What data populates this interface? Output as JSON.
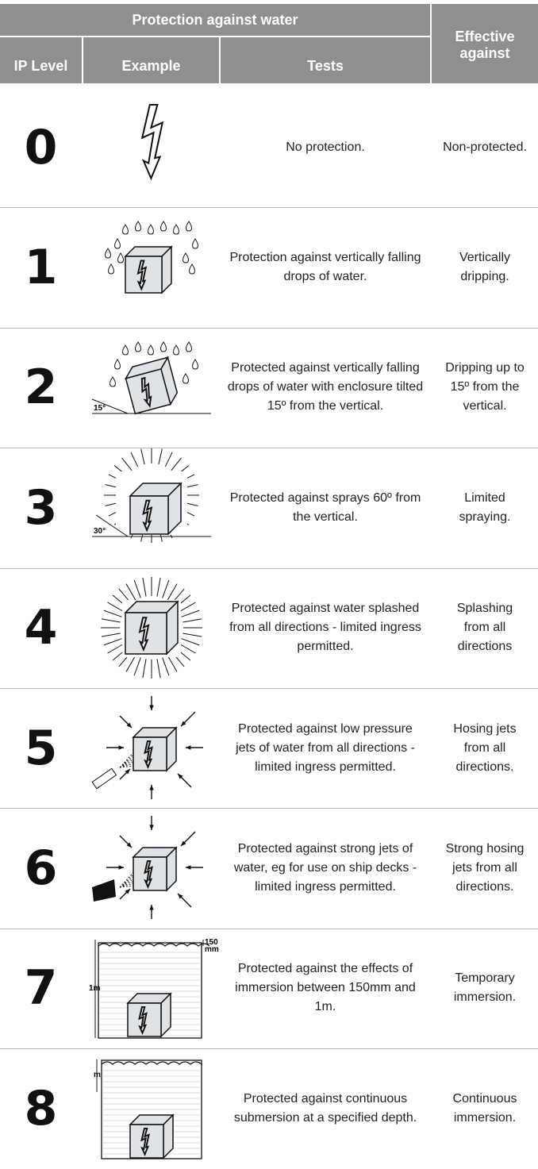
{
  "table": {
    "header": {
      "group": "Protection against water",
      "columns": [
        "IP Level",
        "Example",
        "Tests",
        "Effective against"
      ]
    },
    "rows": [
      {
        "level": "0",
        "test": "No protection.",
        "effective": "Non-protected."
      },
      {
        "level": "1",
        "test": "Protection against vertically falling drops of water.",
        "effective": "Vertically dripping."
      },
      {
        "level": "2",
        "test": "Protected against vertically falling drops of water with enclosure tilted 15º from the vertical.",
        "effective": "Dripping up to 15º from the vertical.",
        "icon_text": [
          "15°"
        ]
      },
      {
        "level": "3",
        "test": "Protected against sprays 60º from the vertical.",
        "effective": "Limited spraying.",
        "icon_text": [
          "30°"
        ]
      },
      {
        "level": "4",
        "test": "Protected against water splashed from all directions - limited ingress permitted.",
        "effective": "Splashing from all directions"
      },
      {
        "level": "5",
        "test": "Protected against low pressure jets of water from all directions - limited ingress permitted.",
        "effective": "Hosing jets from all directions."
      },
      {
        "level": "6",
        "test": "Protected against strong jets of water, eg for use on ship decks - limited ingress permitted.",
        "effective": "Strong hosing jets from all directions."
      },
      {
        "level": "7",
        "test": "Protected against the effects of immersion between 150mm and 1m.",
        "effective": "Temporary immersion.",
        "icon_text": [
          "1m",
          "150",
          "mm"
        ]
      },
      {
        "level": "8",
        "test": "Protected against continuous submersion at a specified depth.",
        "effective": "Continuous immersion.",
        "icon_text": [
          "m"
        ]
      }
    ]
  }
}
